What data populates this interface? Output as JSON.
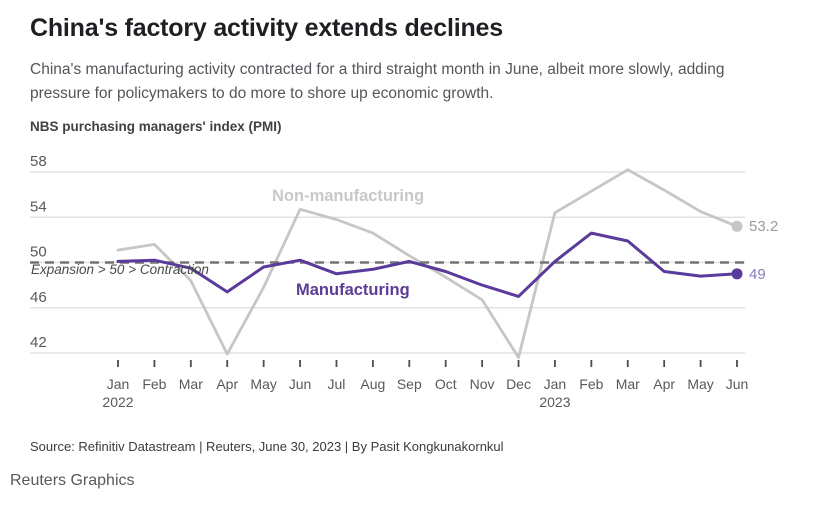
{
  "header": {
    "title": "China's factory activity extends declines",
    "subtitle": "China's manufacturing activity contracted for a third straight month in June, albeit more slowly, adding pressure for policymakers to do more to shore up economic growth.",
    "chart_label": "NBS purchasing managers' index (PMI)"
  },
  "chart_data": {
    "type": "line",
    "title": "NBS purchasing managers' index (PMI)",
    "x": [
      "Jan 2022",
      "Feb 2022",
      "Mar 2022",
      "Apr 2022",
      "May 2022",
      "Jun 2022",
      "Jul 2022",
      "Aug 2022",
      "Sep 2022",
      "Oct 2022",
      "Nov 2022",
      "Dec 2022",
      "Jan 2023",
      "Feb 2023",
      "Mar 2023",
      "Apr 2023",
      "May 2023",
      "Jun 2023"
    ],
    "month_labels": [
      "Jan",
      "Feb",
      "Mar",
      "Apr",
      "May",
      "Jun",
      "Jul",
      "Aug",
      "Sep",
      "Oct",
      "Nov",
      "Dec",
      "Jan",
      "Feb",
      "Mar",
      "Apr",
      "May",
      "Jun"
    ],
    "year_rows": [
      {
        "index": 0,
        "label": "2022"
      },
      {
        "index": 12,
        "label": "2023"
      }
    ],
    "series": [
      {
        "name": "Non-manufacturing",
        "color": "#c6c6c6",
        "label_color": "#9b9b9b",
        "end_label": "53.2",
        "values": [
          51.1,
          51.6,
          48.4,
          41.9,
          47.8,
          54.7,
          53.8,
          52.6,
          50.6,
          48.7,
          46.7,
          41.6,
          54.4,
          56.3,
          58.2,
          56.4,
          54.5,
          53.2
        ]
      },
      {
        "name": "Manufacturing",
        "color": "#5a3a9a",
        "label_color": "#8a7cba",
        "end_label": "49",
        "values": [
          50.1,
          50.2,
          49.5,
          47.4,
          49.6,
          50.2,
          49.0,
          49.4,
          50.1,
          49.2,
          48.0,
          47.0,
          50.1,
          52.6,
          51.9,
          49.2,
          48.8,
          49.0
        ]
      }
    ],
    "y_ticks": [
      58,
      54,
      50,
      46,
      42
    ],
    "ylim": [
      41.5,
      58.3
    ],
    "grid": true,
    "legend_position": "inline-annotations",
    "reference_line": {
      "value": 50,
      "label": "Expansion > 50 > Contraction"
    },
    "colors": {
      "gridline": "#dcdcdc",
      "reference_dash": "#737373",
      "axis_text": "#58595b",
      "tick_mark": "#4d4d4d"
    }
  },
  "footer": {
    "source": "Source: Refinitiv Datastream | Reuters, June 30, 2023 | By Pasit Kongkunakornkul",
    "brand": "Reuters Graphics"
  }
}
